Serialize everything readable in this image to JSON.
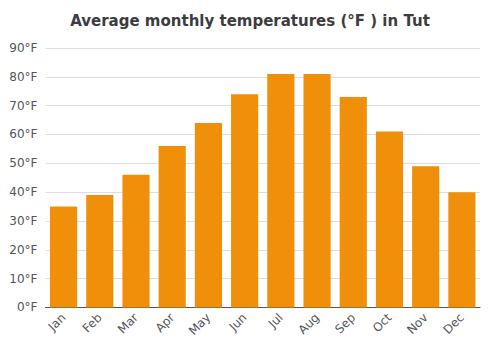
{
  "chart_data": {
    "type": "bar",
    "title": "Average monthly temperatures (°F ) in Tut",
    "categories": [
      "Jan",
      "Feb",
      "Mar",
      "Apr",
      "May",
      "Jun",
      "Jul",
      "Aug",
      "Sep",
      "Oct",
      "Nov",
      "Dec"
    ],
    "values": [
      35,
      39,
      46,
      56,
      64,
      74,
      81,
      81,
      73,
      61,
      49,
      40
    ],
    "color": "#F0900A",
    "ylim": [
      0,
      90
    ],
    "yticks": [
      {
        "value": 0,
        "label": "0°F"
      },
      {
        "value": 10,
        "label": "10°F"
      },
      {
        "value": 20,
        "label": "20°F"
      },
      {
        "value": 30,
        "label": "30°F"
      },
      {
        "value": 40,
        "label": "40°F"
      },
      {
        "value": 50,
        "label": "50°F"
      },
      {
        "value": 60,
        "label": "60°F"
      },
      {
        "value": 70,
        "label": "70°F"
      },
      {
        "value": 80,
        "label": "80°F"
      },
      {
        "value": 90,
        "label": "90°F"
      }
    ],
    "grid": true
  }
}
